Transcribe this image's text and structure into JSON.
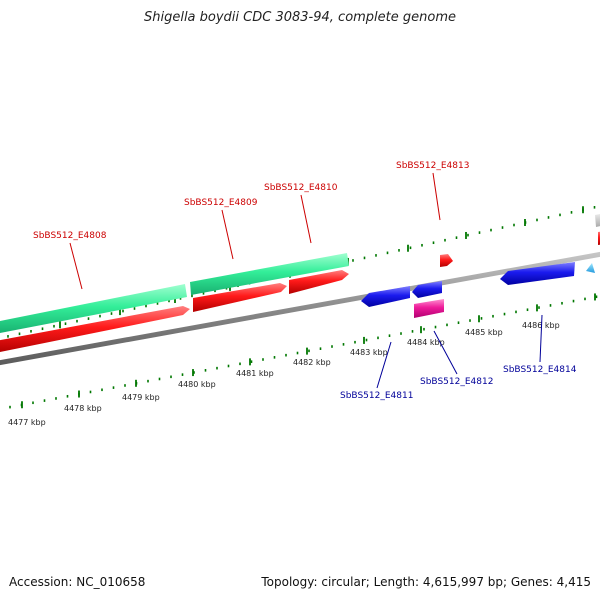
{
  "title": "Shigella boydii CDC 3083-94, complete genome",
  "footer": {
    "accession": "Accession: NC_010658",
    "summary": "Topology: circular; Length: 4,615,997 bp; Genes: 4,415"
  },
  "colors": {
    "forward_label": "#cc0000",
    "reverse_label": "#000099",
    "tick": "#007700",
    "backbone": "#8a8a8a",
    "gene_red": "#ff1a1a",
    "gene_green": "#33ee99",
    "gene_blue": "#1a1aee",
    "gene_magenta": "#ee1a99",
    "gene_cyan": "#33bbee",
    "gene_gray": "#cccccc"
  },
  "ticks": [
    {
      "label": "4477 kbp"
    },
    {
      "label": "4478 kbp"
    },
    {
      "label": "4479 kbp"
    },
    {
      "label": "4480 kbp"
    },
    {
      "label": "4481 kbp"
    },
    {
      "label": "4482 kbp"
    },
    {
      "label": "4483 kbp"
    },
    {
      "label": "4484 kbp"
    },
    {
      "label": "4485 kbp"
    },
    {
      "label": "4486 kbp"
    }
  ],
  "gene_labels": [
    {
      "name": "SbBS512_E4808",
      "strand": "forward"
    },
    {
      "name": "SbBS512_E4809",
      "strand": "forward"
    },
    {
      "name": "SbBS512_E4810",
      "strand": "forward"
    },
    {
      "name": "SbBS512_E4813",
      "strand": "forward"
    },
    {
      "name": "SbBS512_E4811",
      "strand": "reverse"
    },
    {
      "name": "SbBS512_E4812",
      "strand": "reverse"
    },
    {
      "name": "SbBS512_E4814",
      "strand": "reverse"
    }
  ]
}
